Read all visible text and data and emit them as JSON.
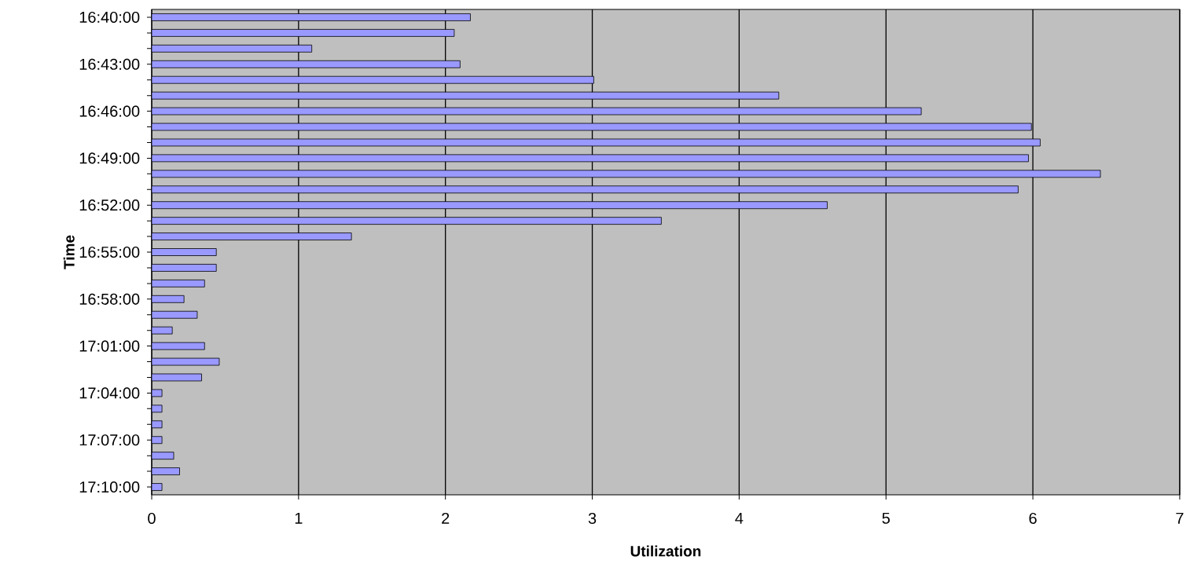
{
  "chart_data": {
    "type": "bar",
    "orientation": "horizontal",
    "xlabel": "Utilization",
    "ylabel": "Time",
    "categories": [
      "16:40:00",
      null,
      null,
      "16:43:00",
      null,
      null,
      "16:46:00",
      null,
      null,
      "16:49:00",
      null,
      null,
      "16:52:00",
      null,
      null,
      "16:55:00",
      null,
      null,
      "16:58:00",
      null,
      null,
      "17:01:00",
      null,
      null,
      "17:04:00",
      null,
      null,
      "17:07:00",
      null,
      null,
      "17:10:00"
    ],
    "values": [
      2.17,
      2.06,
      1.09,
      2.1,
      3.01,
      4.27,
      5.24,
      5.99,
      6.05,
      5.97,
      6.46,
      5.9,
      4.6,
      3.47,
      1.36,
      0.44,
      0.44,
      0.36,
      0.22,
      0.31,
      0.14,
      0.36,
      0.46,
      0.34,
      0.07,
      0.07,
      0.07,
      0.07,
      0.15,
      0.19,
      0.07
    ],
    "color": "#9999ff",
    "xlim": [
      0,
      7
    ],
    "xticks": [
      0,
      1,
      2,
      3,
      4,
      5,
      6,
      7
    ],
    "grid": "x"
  }
}
